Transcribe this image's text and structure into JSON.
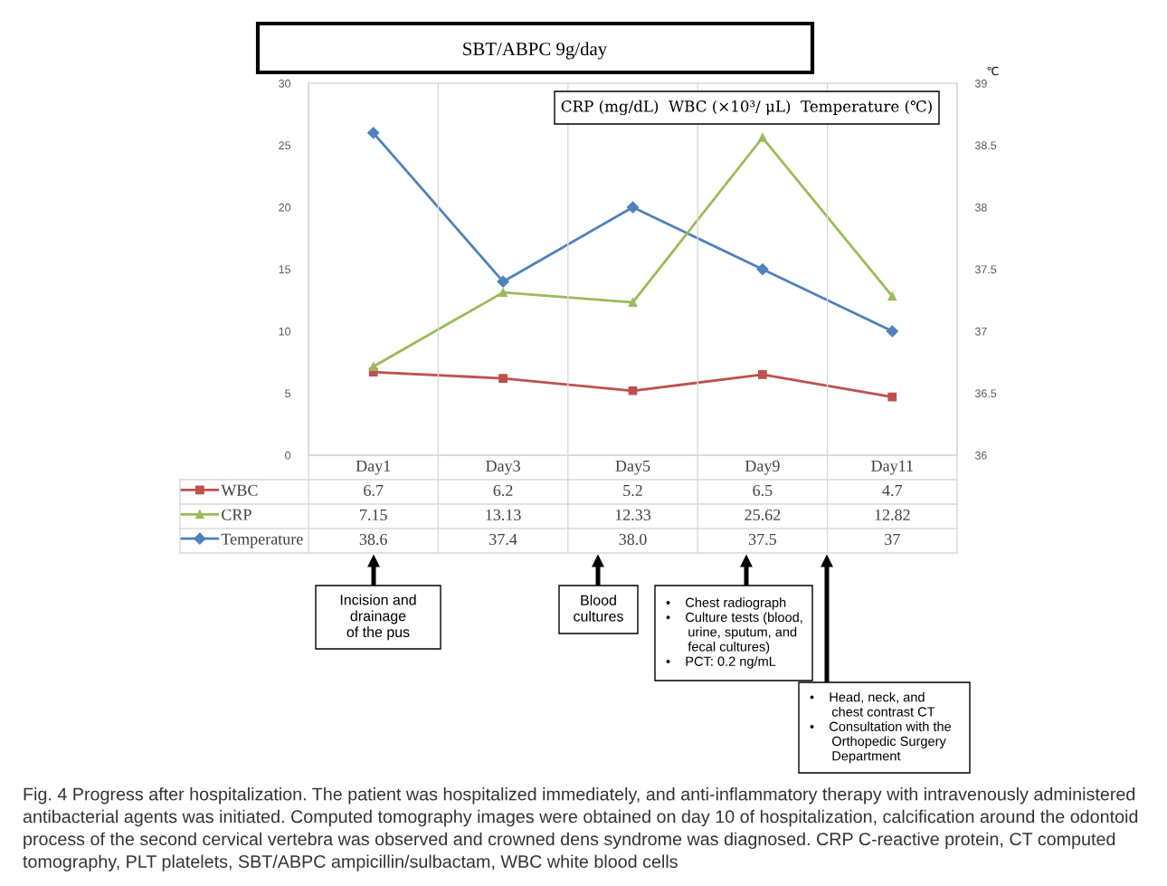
{
  "chart_data": {
    "type": "line",
    "title": "SBT/ABPC 9g/day",
    "y2label": "℃",
    "categories": [
      "Day1",
      "Day3",
      "Day5",
      "Day9",
      "Day11"
    ],
    "series": [
      {
        "name": "WBC",
        "color": "#c0504d",
        "marker": "square",
        "values": [
          6.7,
          6.2,
          5.2,
          6.5,
          4.7
        ],
        "value_labels": [
          "6.7",
          "6.2",
          "5.2",
          "6.5",
          "4.7"
        ]
      },
      {
        "name": "CRP",
        "color": "#9bbb59",
        "marker": "triangle",
        "values": [
          7.15,
          13.13,
          12.33,
          25.62,
          12.82
        ],
        "value_labels": [
          "7.15",
          "13.13",
          "12.33",
          "25.62",
          "12.82"
        ]
      },
      {
        "name": "Temperature",
        "color": "#4f81bd",
        "marker": "diamond",
        "axis": "y2",
        "values": [
          38.6,
          37.4,
          38.0,
          37.5,
          37
        ],
        "value_labels": [
          "38.6",
          "37.4",
          "38.0",
          "37.5",
          "37"
        ]
      }
    ],
    "ylim": [
      0,
      30
    ],
    "yticks": [
      0,
      5,
      10,
      15,
      20,
      25,
      30
    ],
    "y2lim": [
      36,
      39
    ],
    "y2ticks": [
      36,
      36.5,
      37,
      37.5,
      38,
      38.5,
      39
    ],
    "legend": "bottom left",
    "annotations": [
      "CRP (mg/dL)  WBC (×10³/ μL)  Temperature (℃)",
      "Incision and\ndrainage\nof the pus",
      "Blood\ncultures",
      "•    Chest radiograph\n•    Culture tests (blood,\n      urine, sputum, and\n      fecal cultures)\n•    PCT: 0.2 ng/mL",
      "•    Head, neck, and\n      chest contrast CT\n•    Consultation with the\n      Orthopedic Surgery\n      Department",
      "Fig. 4 Progress after hospitalization. The patient was hospitalized immediately, and anti-inflammatory therapy with intravenously administered antibacterial agents was initiated. Computed tomography images were obtained on day 10 of hospitalization, calcification around the odontoid process of the second cervical vertebra was observed and crowned dens syndrome was diagnosed. CRP C-reactive protein, CT computed tomography, PLT platelets, SBT/ABPC ampicillin/sulbactam, WBC white blood cells"
    ]
  }
}
